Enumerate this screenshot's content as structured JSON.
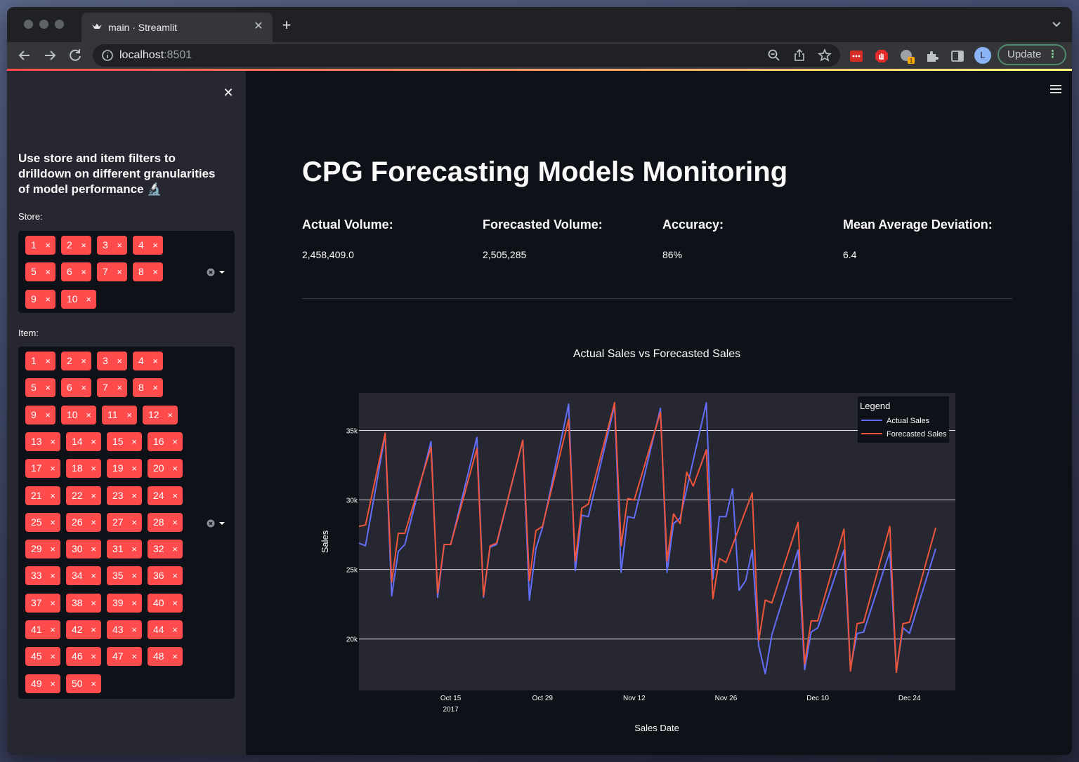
{
  "browser": {
    "tab_title": "main · Streamlit",
    "new_tab_symbol": "+",
    "close_tab_symbol": "✕",
    "url_host": "localhost",
    "url_port": ":8501",
    "update_label": "Update",
    "update_dots": "⋮",
    "profile_initial": "L",
    "ext_badge": "1"
  },
  "sidebar": {
    "close_symbol": "✕",
    "heading": "Use store and item filters to drilldown on different granularities of model performance 🔬",
    "store_label": "Store:",
    "item_label": "Item:",
    "stores": [
      "1",
      "2",
      "3",
      "4",
      "5",
      "6",
      "7",
      "8",
      "9",
      "10"
    ],
    "items": [
      "1",
      "2",
      "3",
      "4",
      "5",
      "6",
      "7",
      "8",
      "9",
      "10",
      "11",
      "12",
      "13",
      "14",
      "15",
      "16",
      "17",
      "18",
      "19",
      "20",
      "21",
      "22",
      "23",
      "24",
      "25",
      "26",
      "27",
      "28",
      "29",
      "30",
      "31",
      "32",
      "33",
      "34",
      "35",
      "36",
      "37",
      "38",
      "39",
      "40",
      "41",
      "42",
      "43",
      "44",
      "45",
      "46",
      "47",
      "48",
      "49",
      "50"
    ],
    "chip_remove_symbol": "×"
  },
  "main": {
    "title": "CPG Forecasting Models Monitoring",
    "metrics": [
      {
        "label": "Actual Volume:",
        "value": "2,458,409.0"
      },
      {
        "label": "Forecasted Volume:",
        "value": "2,505,285"
      },
      {
        "label": "Accuracy:",
        "value": "86%"
      },
      {
        "label": "Mean Average Deviation:",
        "value": "6.4"
      }
    ]
  },
  "colors": {
    "accent": "#ff4b4b",
    "actual_series": "#636efa",
    "forecast_series": "#ef553b",
    "plot_bg": "#262730",
    "page_bg": "#0e1117"
  },
  "chart_data": {
    "type": "line",
    "title": "Actual Sales vs Forecasted Sales",
    "xlabel": "Sales Date",
    "ylabel": "Sales",
    "x_start": "2017-10-01",
    "x_end": "2017-12-31",
    "ylim": [
      16300,
      37700
    ],
    "y_ticks": [
      20000,
      25000,
      30000,
      35000
    ],
    "y_tick_labels": [
      "20k",
      "25k",
      "30k",
      "35k"
    ],
    "x_ticks": [
      "2017-10-15",
      "2017-10-29",
      "2017-11-12",
      "2017-11-26",
      "2017-12-10",
      "2017-12-24"
    ],
    "x_tick_labels": [
      "Oct 15\n2017",
      "Oct 29",
      "Nov 12",
      "Nov 26",
      "Dec 10",
      "Dec 24"
    ],
    "legend_title": "Legend",
    "legend_position": "top-right",
    "grid": true,
    "series": [
      {
        "name": "Actual Sales",
        "points": [
          [
            "2017-10-01",
            26900
          ],
          [
            "2017-10-02",
            26700
          ],
          [
            "2017-10-05",
            34700
          ],
          [
            "2017-10-06",
            23100
          ],
          [
            "2017-10-07",
            26300
          ],
          [
            "2017-10-08",
            26800
          ],
          [
            "2017-10-12",
            34200
          ],
          [
            "2017-10-13",
            23000
          ],
          [
            "2017-10-14",
            26800
          ],
          [
            "2017-10-15",
            26800
          ],
          [
            "2017-10-19",
            34500
          ],
          [
            "2017-10-20",
            23000
          ],
          [
            "2017-10-21",
            26600
          ],
          [
            "2017-10-22",
            26800
          ],
          [
            "2017-10-26",
            34300
          ],
          [
            "2017-10-27",
            22800
          ],
          [
            "2017-10-28",
            26500
          ],
          [
            "2017-10-29",
            28000
          ],
          [
            "2017-11-02",
            36900
          ],
          [
            "2017-11-03",
            24900
          ],
          [
            "2017-11-04",
            28900
          ],
          [
            "2017-11-05",
            28800
          ],
          [
            "2017-11-09",
            36800
          ],
          [
            "2017-11-10",
            24800
          ],
          [
            "2017-11-11",
            28800
          ],
          [
            "2017-11-12",
            28700
          ],
          [
            "2017-11-16",
            36600
          ],
          [
            "2017-11-17",
            24800
          ],
          [
            "2017-11-18",
            28300
          ],
          [
            "2017-11-19",
            28700
          ],
          [
            "2017-11-23",
            37000
          ],
          [
            "2017-11-24",
            24300
          ],
          [
            "2017-11-25",
            28800
          ],
          [
            "2017-11-26",
            28800
          ],
          [
            "2017-11-27",
            30800
          ],
          [
            "2017-11-28",
            23500
          ],
          [
            "2017-11-29",
            24200
          ],
          [
            "2017-11-30",
            26400
          ],
          [
            "2017-12-01",
            19500
          ],
          [
            "2017-12-02",
            17500
          ],
          [
            "2017-12-03",
            20300
          ],
          [
            "2017-12-07",
            26400
          ],
          [
            "2017-12-08",
            17800
          ],
          [
            "2017-12-09",
            20500
          ],
          [
            "2017-12-10",
            20800
          ],
          [
            "2017-12-14",
            26400
          ],
          [
            "2017-12-15",
            17900
          ],
          [
            "2017-12-16",
            20400
          ],
          [
            "2017-12-17",
            20500
          ],
          [
            "2017-12-21",
            26300
          ],
          [
            "2017-12-22",
            17700
          ],
          [
            "2017-12-23",
            20800
          ],
          [
            "2017-12-24",
            20400
          ],
          [
            "2017-12-28",
            26500
          ]
        ]
      },
      {
        "name": "Forecasted Sales",
        "points": [
          [
            "2017-10-01",
            28100
          ],
          [
            "2017-10-02",
            28200
          ],
          [
            "2017-10-05",
            34800
          ],
          [
            "2017-10-06",
            24100
          ],
          [
            "2017-10-07",
            27600
          ],
          [
            "2017-10-08",
            27600
          ],
          [
            "2017-10-12",
            33800
          ],
          [
            "2017-10-13",
            23300
          ],
          [
            "2017-10-14",
            26800
          ],
          [
            "2017-10-15",
            26800
          ],
          [
            "2017-10-19",
            33700
          ],
          [
            "2017-10-20",
            23100
          ],
          [
            "2017-10-21",
            26700
          ],
          [
            "2017-10-22",
            26900
          ],
          [
            "2017-10-26",
            34300
          ],
          [
            "2017-10-27",
            24200
          ],
          [
            "2017-10-28",
            27800
          ],
          [
            "2017-10-29",
            28100
          ],
          [
            "2017-11-02",
            35800
          ],
          [
            "2017-11-03",
            25600
          ],
          [
            "2017-11-04",
            29400
          ],
          [
            "2017-11-05",
            29700
          ],
          [
            "2017-11-09",
            37000
          ],
          [
            "2017-11-10",
            26700
          ],
          [
            "2017-11-11",
            30100
          ],
          [
            "2017-11-12",
            30000
          ],
          [
            "2017-11-16",
            36300
          ],
          [
            "2017-11-17",
            25600
          ],
          [
            "2017-11-18",
            29000
          ],
          [
            "2017-11-19",
            28300
          ],
          [
            "2017-11-20",
            32000
          ],
          [
            "2017-11-21",
            31000
          ],
          [
            "2017-11-23",
            33600
          ],
          [
            "2017-11-24",
            22900
          ],
          [
            "2017-11-25",
            25800
          ],
          [
            "2017-11-26",
            25500
          ],
          [
            "2017-11-30",
            30500
          ],
          [
            "2017-12-01",
            19900
          ],
          [
            "2017-12-02",
            22800
          ],
          [
            "2017-12-03",
            22600
          ],
          [
            "2017-12-07",
            28400
          ],
          [
            "2017-12-08",
            18200
          ],
          [
            "2017-12-09",
            21300
          ],
          [
            "2017-12-10",
            21300
          ],
          [
            "2017-12-14",
            27900
          ],
          [
            "2017-12-15",
            17700
          ],
          [
            "2017-12-16",
            21100
          ],
          [
            "2017-12-17",
            21200
          ],
          [
            "2017-12-21",
            28100
          ],
          [
            "2017-12-22",
            17600
          ],
          [
            "2017-12-23",
            21100
          ],
          [
            "2017-12-24",
            21200
          ],
          [
            "2017-12-28",
            28000
          ]
        ]
      }
    ]
  }
}
